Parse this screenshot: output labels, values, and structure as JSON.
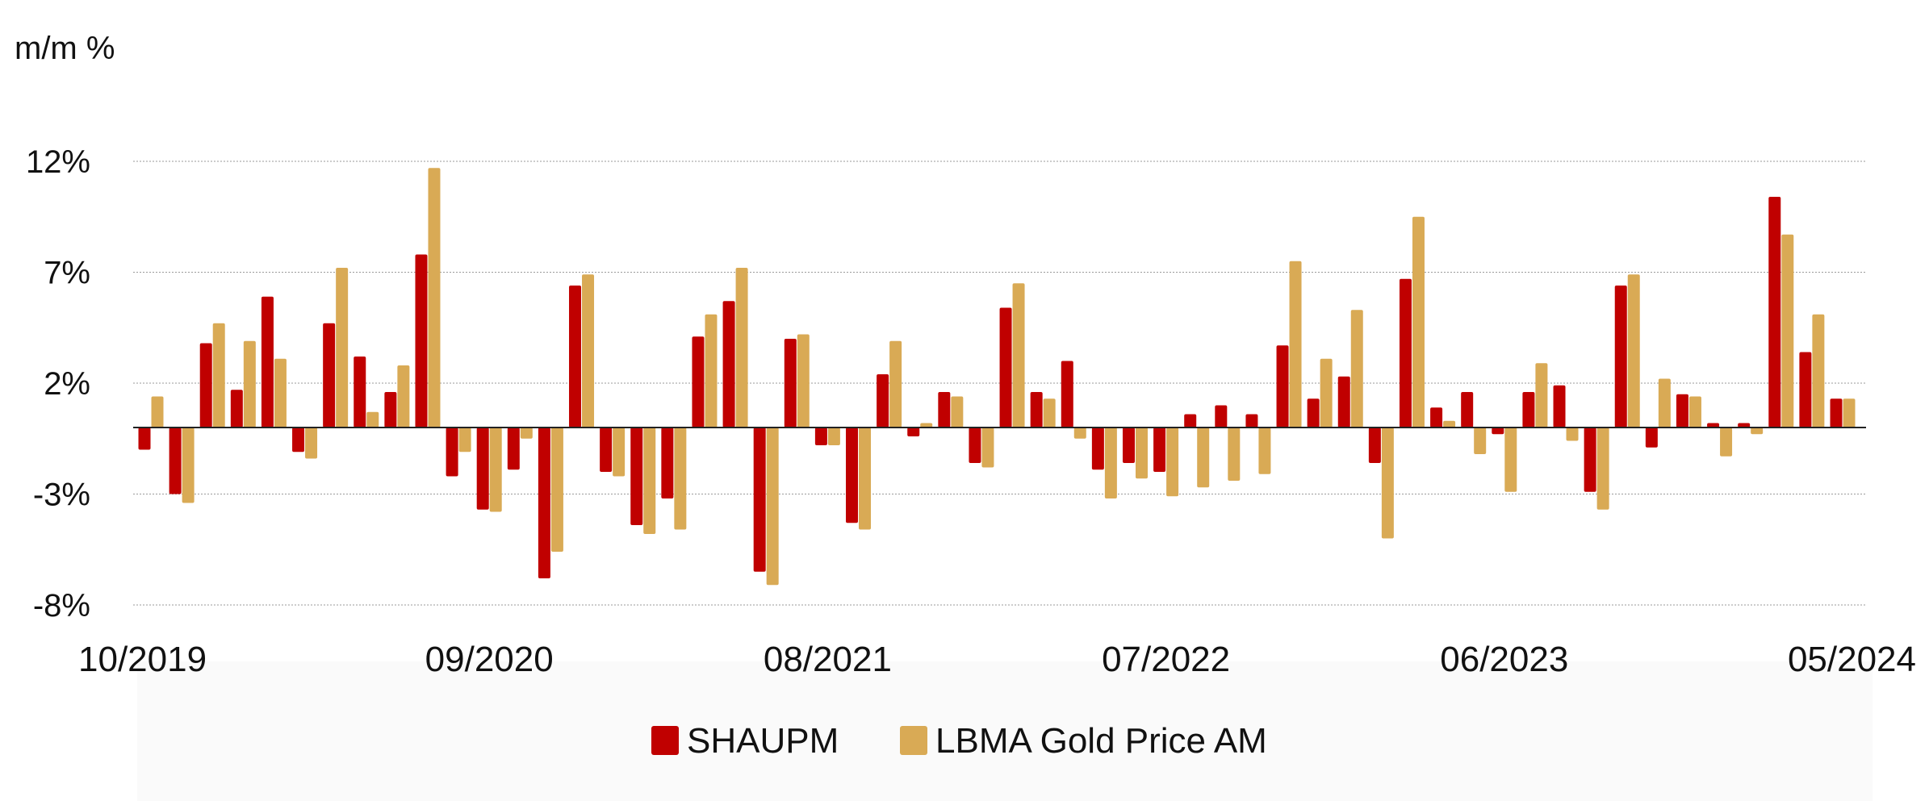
{
  "chart_data": {
    "type": "bar",
    "title": "",
    "xlabel": "",
    "ylabel": "m/m %",
    "y_ticks": [
      "12%",
      "7%",
      "2%",
      "-3%",
      "-8%"
    ],
    "y_tick_values": [
      12,
      7,
      2,
      -3,
      -8
    ],
    "ylim": [
      -8,
      12
    ],
    "x_tick_labels": [
      "10/2019",
      "09/2020",
      "08/2021",
      "07/2022",
      "06/2023",
      "05/2024"
    ],
    "x_tick_indices": [
      0,
      11,
      22,
      33,
      44,
      55
    ],
    "grid": true,
    "legend_position": "bottom-center",
    "categories": [
      "10/2019",
      "11/2019",
      "12/2019",
      "01/2020",
      "02/2020",
      "03/2020",
      "04/2020",
      "05/2020",
      "06/2020",
      "07/2020",
      "08/2020",
      "09/2020",
      "10/2020",
      "11/2020",
      "12/2020",
      "01/2021",
      "02/2021",
      "03/2021",
      "04/2021",
      "05/2021",
      "06/2021",
      "07/2021",
      "08/2021",
      "09/2021",
      "10/2021",
      "11/2021",
      "12/2021",
      "01/2022",
      "02/2022",
      "03/2022",
      "04/2022",
      "05/2022",
      "06/2022",
      "07/2022",
      "08/2022",
      "09/2022",
      "10/2022",
      "11/2022",
      "12/2022",
      "01/2023",
      "02/2023",
      "03/2023",
      "04/2023",
      "05/2023",
      "06/2023",
      "07/2023",
      "08/2023",
      "09/2023",
      "10/2023",
      "11/2023",
      "12/2023",
      "01/2024",
      "02/2024",
      "03/2024",
      "04/2024",
      "05/2024"
    ],
    "series": [
      {
        "name": "SHAUPM",
        "color": "#c00000",
        "values": [
          -1.0,
          -3.0,
          3.8,
          1.7,
          5.9,
          -1.1,
          4.7,
          3.2,
          1.6,
          7.8,
          -2.2,
          -3.7,
          -1.9,
          -6.8,
          6.4,
          -2.0,
          -4.4,
          -3.2,
          4.1,
          5.7,
          -6.5,
          4.0,
          -0.8,
          -4.3,
          2.4,
          -0.4,
          1.6,
          -1.6,
          5.4,
          1.6,
          3.0,
          -1.9,
          -1.6,
          -2.0,
          0.6,
          1.0,
          0.6,
          3.7,
          1.3,
          2.3,
          -1.6,
          6.7,
          0.9,
          1.6,
          -0.3,
          1.6,
          1.9,
          -2.9,
          6.4,
          -0.9,
          1.5,
          0.2,
          0.2,
          10.4,
          3.4,
          1.3
        ],
        "display_values": [
          -1.0,
          -3.0,
          3.8,
          1.7,
          5.9,
          -1.1,
          4.7,
          3.2,
          1.6,
          7.8,
          -2.2,
          -3.7,
          -1.9,
          -6.8,
          6.4,
          -2.0,
          -4.4,
          -3.2,
          4.1,
          5.7,
          -6.5,
          4.0,
          -0.8,
          -4.3,
          2.4,
          -0.4,
          1.6,
          -1.6,
          5.4,
          1.6,
          3.0,
          -1.9,
          -1.6,
          -2.0,
          0.6,
          1.0,
          0.6,
          3.7,
          1.3,
          2.3,
          -1.6,
          6.7,
          0.9,
          1.6,
          -0.3,
          1.6,
          1.9,
          -2.9,
          6.4,
          -0.9,
          1.5,
          0.2,
          0.2,
          10.4,
          3.4,
          1.3
        ]
      },
      {
        "name": "LBMA Gold Price AM",
        "color": "#d9aa55",
        "values": [
          1.4,
          -3.4,
          4.7,
          3.9,
          3.1,
          -1.4,
          7.2,
          0.7,
          2.8,
          11.7,
          -1.1,
          -3.8,
          -0.5,
          -5.6,
          6.9,
          -2.2,
          -4.8,
          -4.6,
          5.1,
          7.2,
          -7.1,
          4.2,
          -0.8,
          -4.6,
          3.9,
          0.2,
          1.4,
          -1.8,
          6.5,
          1.3,
          -0.5,
          -3.2,
          -2.3,
          -3.1,
          -2.7,
          -2.4,
          -2.1,
          7.5,
          3.1,
          5.3,
          -5.0,
          9.5,
          0.3,
          -1.2,
          -2.9,
          2.9,
          -0.6,
          -3.7,
          6.9,
          2.2,
          1.4,
          -1.3,
          -0.3,
          8.7,
          5.1,
          1.3
        ]
      }
    ]
  }
}
